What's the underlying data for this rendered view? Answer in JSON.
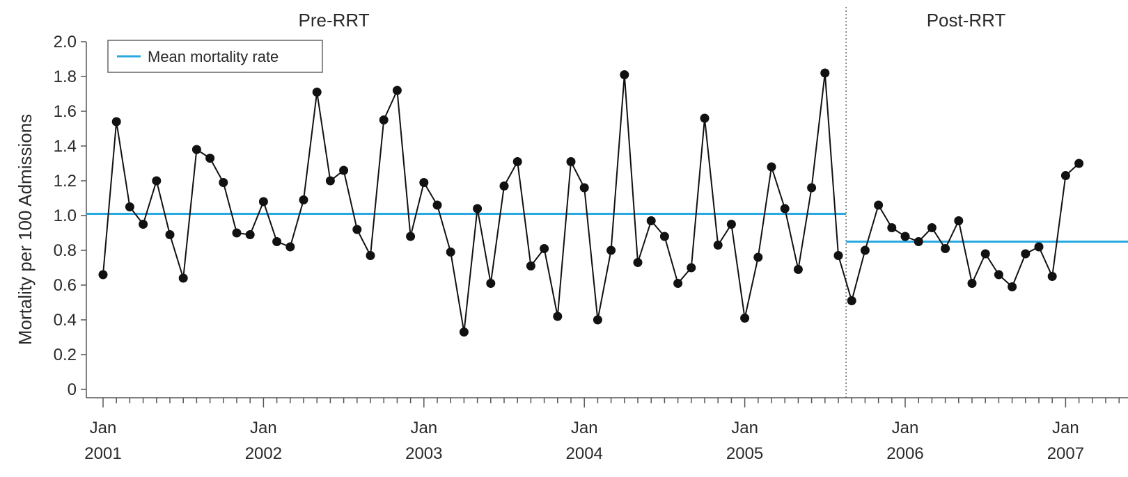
{
  "chart_data": {
    "type": "line",
    "ylabel": "Mortality per 100 Admissions",
    "ylim": [
      0,
      2.0
    ],
    "yticks": [
      0,
      0.2,
      0.4,
      0.6,
      0.8,
      1.0,
      1.2,
      1.4,
      1.6,
      1.8,
      2.0
    ],
    "ytick_labels": [
      "0",
      "0.2",
      "0.4",
      "0.6",
      "0.8",
      "1.0",
      "1.2",
      "1.4",
      "1.6",
      "1.8",
      "2.0"
    ],
    "x_tick_labels": [
      {
        "month": "Jan",
        "year": "2001"
      },
      {
        "month": "Jan",
        "year": "2002"
      },
      {
        "month": "Jan",
        "year": "2003"
      },
      {
        "month": "Jan",
        "year": "2004"
      },
      {
        "month": "Jan",
        "year": "2005"
      },
      {
        "month": "Jan",
        "year": "2006"
      },
      {
        "month": "Jan",
        "year": "2007"
      }
    ],
    "x_start": "2001-01",
    "phases": [
      {
        "label": "Pre-RRT",
        "start": "2001-01",
        "end": "2005-08"
      },
      {
        "label": "Post-RRT",
        "start": "2005-09",
        "end": "2007-02"
      }
    ],
    "legend": {
      "entry": "Mean mortality rate",
      "position": "top-left"
    },
    "mean_lines": [
      {
        "phase": "Pre-RRT",
        "value": 1.01
      },
      {
        "phase": "Post-RRT",
        "value": 0.85
      }
    ],
    "colors": {
      "mean_line": "#29a9e1",
      "series": "#111111",
      "axis": "#555555"
    },
    "series": [
      {
        "x": [
          "2001-01",
          "2001-02",
          "2001-03",
          "2001-04",
          "2001-05",
          "2001-06",
          "2001-07",
          "2001-08",
          "2001-09",
          "2001-10",
          "2001-11",
          "2001-12",
          "2002-01",
          "2002-02",
          "2002-03",
          "2002-04",
          "2002-05",
          "2002-06",
          "2002-07",
          "2002-08",
          "2002-09",
          "2002-10",
          "2002-11",
          "2002-12",
          "2003-01",
          "2003-02",
          "2003-03",
          "2003-04",
          "2003-05",
          "2003-06",
          "2003-07",
          "2003-08",
          "2003-09",
          "2003-10",
          "2003-11",
          "2003-12",
          "2004-01",
          "2004-02",
          "2004-03",
          "2004-04",
          "2004-05",
          "2004-06",
          "2004-07",
          "2004-08",
          "2004-09",
          "2004-10",
          "2004-11",
          "2004-12",
          "2005-01",
          "2005-02",
          "2005-03",
          "2005-04",
          "2005-05",
          "2005-06",
          "2005-07",
          "2005-08",
          "2005-09",
          "2005-10",
          "2005-11",
          "2005-12",
          "2006-01",
          "2006-02",
          "2006-03",
          "2006-04",
          "2006-05",
          "2006-06",
          "2006-07",
          "2006-08",
          "2006-09",
          "2006-10",
          "2006-11",
          "2006-12",
          "2007-01",
          "2007-02"
        ],
        "values": [
          0.66,
          1.54,
          1.05,
          0.95,
          1.2,
          0.89,
          0.64,
          1.38,
          1.33,
          1.19,
          0.9,
          0.89,
          1.08,
          0.85,
          0.82,
          1.09,
          1.71,
          1.2,
          1.26,
          0.92,
          0.77,
          1.55,
          1.72,
          0.88,
          1.19,
          1.06,
          0.79,
          0.33,
          1.04,
          0.61,
          1.17,
          1.31,
          0.71,
          0.81,
          0.42,
          1.31,
          1.16,
          0.4,
          0.8,
          1.81,
          0.73,
          0.97,
          0.88,
          0.61,
          0.7,
          1.56,
          0.83,
          0.95,
          0.41,
          0.76,
          1.28,
          1.04,
          0.69,
          1.16,
          1.82,
          0.77,
          0.51,
          0.8,
          1.06,
          0.93,
          0.88,
          0.85,
          0.93,
          0.81,
          0.97,
          0.61,
          0.78,
          0.66,
          0.59,
          0.78,
          0.82,
          0.65,
          1.23,
          1.3
        ]
      }
    ]
  }
}
